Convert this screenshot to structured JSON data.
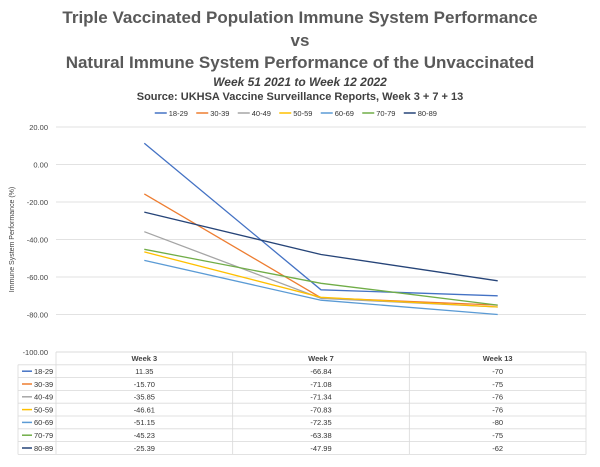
{
  "chart_data": {
    "type": "line",
    "title_lines": [
      "Triple Vaccinated Population Immune System Performance",
      "vs",
      "Natural Immune System Performance of the Unvaccinated"
    ],
    "subtitle": "Week 51 2021 to Week 12 2022",
    "source": "Source: UKHSA Vaccine Surveillance Reports, Week 3 + 7 + 13",
    "ylabel": "Immune System Performance (%)",
    "xlabel": "",
    "ylim": [
      -100,
      20
    ],
    "y_ticks": [
      "20.00",
      "0.00",
      "-20.00",
      "-40.00",
      "-60.00",
      "-80.00",
      "-100.00"
    ],
    "y_tick_values": [
      20,
      0,
      -20,
      -40,
      -60,
      -80,
      -100
    ],
    "categories": [
      "Week 3",
      "Week 7",
      "Week 13"
    ],
    "legend_position": "top",
    "grid": true,
    "series": [
      {
        "name": "18-29",
        "color": "#4472c4",
        "values": [
          11.35,
          -66.84,
          -70
        ],
        "labels": [
          "11.35",
          "-66.84",
          "-70"
        ]
      },
      {
        "name": "30-39",
        "color": "#ed7d31",
        "values": [
          -15.7,
          -71.08,
          -75
        ],
        "labels": [
          "-15.70",
          "-71.08",
          "-75"
        ]
      },
      {
        "name": "40-49",
        "color": "#a5a5a5",
        "values": [
          -35.85,
          -71.34,
          -76
        ],
        "labels": [
          "-35.85",
          "-71.34",
          "-76"
        ]
      },
      {
        "name": "50-59",
        "color": "#ffc000",
        "values": [
          -46.61,
          -70.83,
          -76
        ],
        "labels": [
          "-46.61",
          "-70.83",
          "-76"
        ]
      },
      {
        "name": "60-69",
        "color": "#5b9bd5",
        "values": [
          -51.15,
          -72.35,
          -80
        ],
        "labels": [
          "-51.15",
          "-72.35",
          "-80"
        ]
      },
      {
        "name": "70-79",
        "color": "#70ad47",
        "values": [
          -45.23,
          -63.38,
          -75
        ],
        "labels": [
          "-45.23",
          "-63.38",
          "-75"
        ]
      },
      {
        "name": "80-89",
        "color": "#264478",
        "values": [
          -25.39,
          -47.99,
          -62
        ],
        "labels": [
          "-25.39",
          "-47.99",
          "-62"
        ]
      }
    ]
  }
}
